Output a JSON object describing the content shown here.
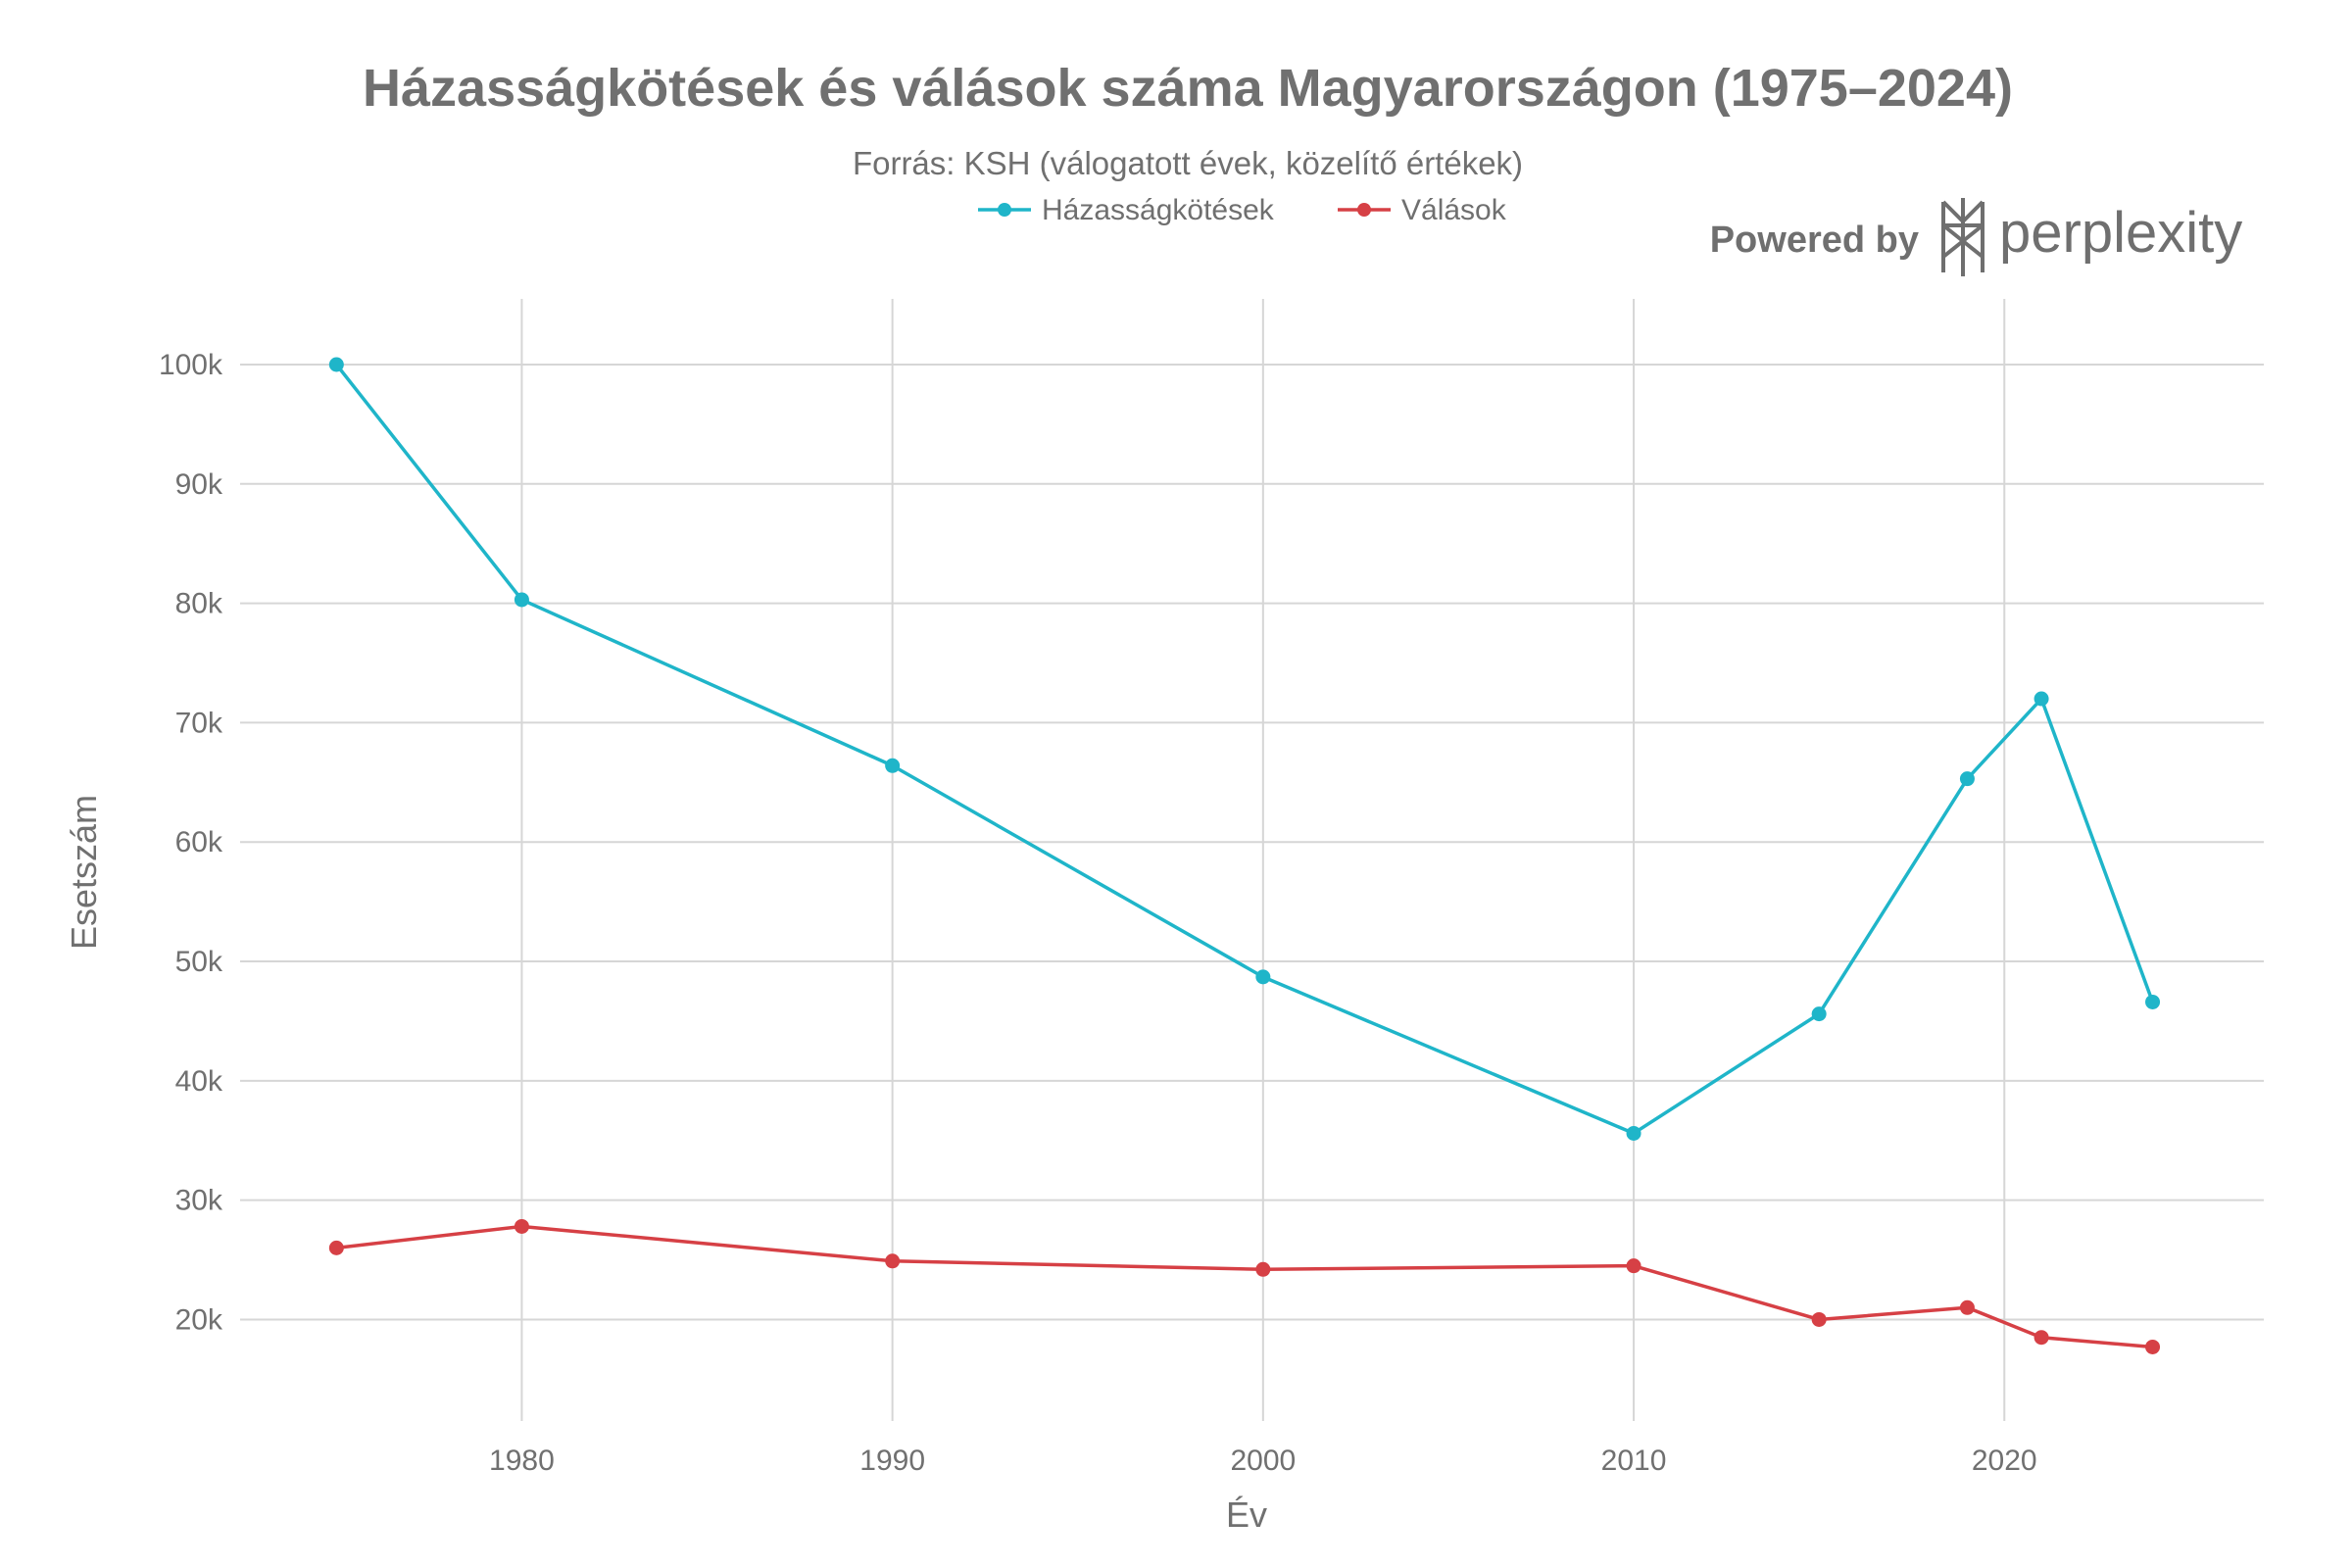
{
  "chart_data": {
    "type": "line",
    "title": "Házasságkötések és válások száma Magyarországon (1975–2024)",
    "subtitle": "Forrás: KSH (válogatott évek, közelítő értékek)",
    "xlabel": "Év",
    "ylabel": "Esetszám",
    "x": [
      1975,
      1980,
      1990,
      2000,
      2010,
      2015,
      2019,
      2021,
      2024
    ],
    "series": [
      {
        "name": "Házasságkötések",
        "color": "#1fb5c9",
        "values": [
          100000,
          80300,
          66400,
          48700,
          35600,
          45600,
          65300,
          72000,
          46600
        ]
      },
      {
        "name": "Válások",
        "color": "#d64045",
        "values": [
          26000,
          27800,
          24900,
          24200,
          24500,
          20000,
          21000,
          18500,
          17700
        ]
      }
    ],
    "xticks": [
      1980,
      1990,
      2000,
      2010,
      2020
    ],
    "xtick_labels": [
      "1980",
      "1990",
      "2000",
      "2010",
      "2020"
    ],
    "yticks": [
      20000,
      30000,
      40000,
      50000,
      60000,
      70000,
      80000,
      90000,
      100000
    ],
    "ytick_labels": [
      "20k",
      "30k",
      "40k",
      "50k",
      "60k",
      "70k",
      "80k",
      "90k",
      "100k"
    ],
    "xlim": [
      1972.4,
      2027
    ],
    "ylim": [
      11500,
      105500
    ],
    "grid": true,
    "legend_position": "top-center"
  },
  "branding": {
    "powered_by": "Powered by",
    "name": "perplexity",
    "logo_icon": "perplexity-logo-icon"
  }
}
